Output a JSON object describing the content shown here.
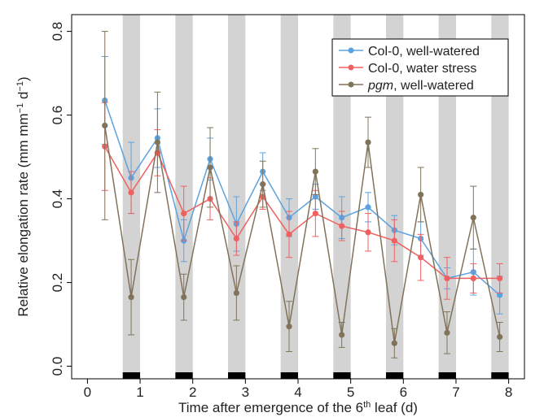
{
  "chart_data": {
    "type": "line",
    "xlabel": "Time after emergence of the 6th leaf (d)",
    "xlabel_parts": {
      "pre": "Time after emergence of the 6",
      "sup": "th",
      "post": " leaf (d)"
    },
    "ylabel": "Relative elongation rate (mm mm−1 d−1)",
    "ylabel_parts": {
      "pre": "Relative elongation rate (mm mm",
      "sup1": "−1",
      "mid": " d",
      "sup2": "−1",
      "post": ")"
    },
    "xlim": [
      -0.3,
      8.3
    ],
    "ylim": [
      -0.03,
      0.84
    ],
    "xticks": [
      0,
      1,
      2,
      3,
      4,
      5,
      6,
      7,
      8
    ],
    "xtick_labels": [
      "0",
      "1",
      "2",
      "3",
      "4",
      "5",
      "6",
      "7",
      "8"
    ],
    "yticks": [
      0.0,
      0.2,
      0.4,
      0.6,
      0.8
    ],
    "ytick_labels": [
      "0.0",
      "0.2",
      "0.4",
      "0.6",
      "0.8"
    ],
    "grid": false,
    "legend_position": "top-right",
    "night_bands": [
      [
        0.67,
        1.0
      ],
      [
        1.67,
        2.0
      ],
      [
        2.67,
        3.0
      ],
      [
        3.67,
        4.0
      ],
      [
        4.67,
        5.0
      ],
      [
        5.67,
        6.0
      ],
      [
        6.67,
        7.0
      ],
      [
        7.67,
        8.0
      ]
    ],
    "band_color": "#d3d3d3",
    "bar_color": "#000000",
    "series": [
      {
        "name": "Col-0, well-watered",
        "color": "#5ba3e0",
        "x": [
          0.33,
          0.83,
          1.33,
          1.83,
          2.33,
          2.83,
          3.33,
          3.83,
          4.33,
          4.83,
          5.33,
          5.83,
          6.33,
          6.83,
          7.33,
          7.83
        ],
        "y": [
          0.635,
          0.45,
          0.545,
          0.3,
          0.495,
          0.34,
          0.465,
          0.355,
          0.405,
          0.355,
          0.38,
          0.325,
          0.305,
          0.21,
          0.225,
          0.17
        ],
        "err": [
          0.105,
          0.085,
          0.07,
          0.05,
          0.05,
          0.065,
          0.045,
          0.045,
          0.03,
          0.05,
          0.035,
          0.035,
          0.04,
          0.025,
          0.055,
          0.045
        ]
      },
      {
        "name": "Col-0, water stress",
        "color": "#f06060",
        "x": [
          0.33,
          0.83,
          1.33,
          1.83,
          2.33,
          2.83,
          3.33,
          3.83,
          4.33,
          4.83,
          5.33,
          5.83,
          6.33,
          6.83,
          7.33,
          7.83
        ],
        "y": [
          0.525,
          0.415,
          0.51,
          0.365,
          0.4,
          0.305,
          0.405,
          0.315,
          0.365,
          0.335,
          0.32,
          0.3,
          0.26,
          0.21,
          0.21,
          0.21
        ],
        "err": [
          0.105,
          0.05,
          0.055,
          0.065,
          0.05,
          0.04,
          0.03,
          0.055,
          0.055,
          0.035,
          0.045,
          0.05,
          0.055,
          0.05,
          0.035,
          0.035
        ]
      },
      {
        "name": "pgm, well-watered",
        "name_italic": "pgm",
        "name_rest": ", well-watered",
        "color": "#80735a",
        "x": [
          0.33,
          0.83,
          1.33,
          1.83,
          2.33,
          2.83,
          3.33,
          3.83,
          4.33,
          4.83,
          5.33,
          5.83,
          6.33,
          6.83,
          7.33,
          7.83
        ],
        "y": [
          0.575,
          0.165,
          0.535,
          0.165,
          0.475,
          0.175,
          0.435,
          0.095,
          0.465,
          0.075,
          0.535,
          0.055,
          0.41,
          0.08,
          0.355,
          0.07
        ],
        "err": [
          0.225,
          0.09,
          0.12,
          0.055,
          0.095,
          0.065,
          0.055,
          0.06,
          0.055,
          0.03,
          0.06,
          0.035,
          0.065,
          0.05,
          0.075,
          0.035
        ]
      }
    ]
  }
}
